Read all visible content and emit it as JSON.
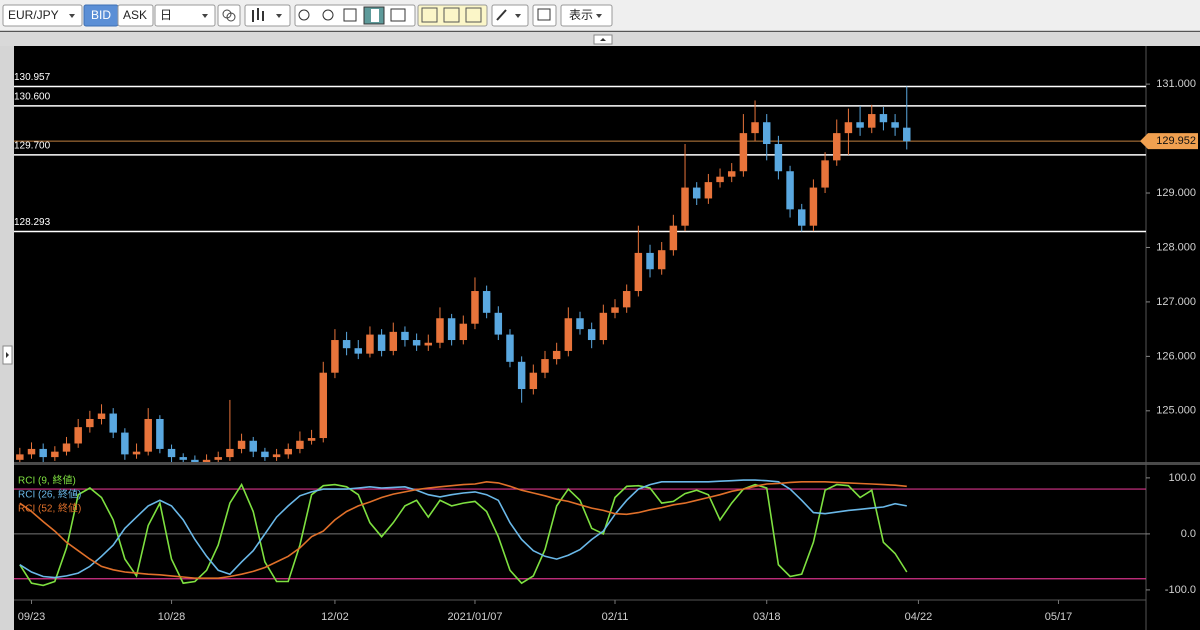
{
  "toolbar": {
    "symbol": "EUR/JPY",
    "bid": "BID",
    "ask": "ASK",
    "period": "日",
    "display": "表示"
  },
  "chart_data": [
    {
      "type": "candlestick",
      "up_color": "#e8743b",
      "down_color": "#5aa8e0",
      "open": [
        124.1,
        124.2,
        124.3,
        124.15,
        124.25,
        124.4,
        124.7,
        124.85,
        124.95,
        124.6,
        124.2,
        124.25,
        124.85,
        124.3,
        124.15,
        124.1,
        124.05,
        124.1,
        124.15,
        124.3,
        124.45,
        124.25,
        124.15,
        124.2,
        124.3,
        124.45,
        124.5,
        125.7,
        126.3,
        126.15,
        126.05,
        126.4,
        126.1,
        126.45,
        126.3,
        126.2,
        126.25,
        126.7,
        126.3,
        126.6,
        127.2,
        126.8,
        126.4,
        125.9,
        125.4,
        125.7,
        125.95,
        126.1,
        126.7,
        126.5,
        126.3,
        126.8,
        126.9,
        127.2,
        127.9,
        127.6,
        127.95,
        128.4,
        129.1,
        128.9,
        129.2,
        129.3,
        129.4,
        130.1,
        130.3,
        129.9,
        129.4,
        128.7,
        128.4,
        129.1,
        129.6,
        130.1,
        130.3,
        130.2,
        130.45,
        130.3,
        130.2,
        null,
        null,
        null,
        null,
        null,
        null,
        null,
        null,
        null,
        null,
        null,
        null,
        null,
        null,
        null,
        null,
        null,
        null,
        null,
        null
      ],
      "high": [
        124.32,
        124.42,
        124.4,
        124.35,
        124.52,
        124.85,
        125.0,
        125.12,
        125.05,
        124.68,
        124.4,
        125.05,
        124.92,
        124.38,
        124.22,
        124.18,
        124.2,
        124.25,
        125.2,
        124.58,
        124.52,
        124.32,
        124.3,
        124.4,
        124.62,
        124.65,
        125.9,
        126.5,
        126.45,
        126.3,
        126.55,
        126.5,
        126.62,
        126.55,
        126.42,
        126.4,
        126.9,
        126.78,
        126.75,
        127.45,
        127.3,
        126.92,
        126.5,
        126.0,
        125.85,
        126.1,
        126.25,
        126.9,
        126.82,
        126.62,
        126.95,
        127.05,
        127.32,
        128.4,
        128.05,
        128.1,
        128.6,
        129.9,
        129.2,
        129.35,
        129.45,
        129.55,
        130.45,
        130.7,
        130.45,
        130.05,
        129.5,
        128.8,
        129.25,
        129.75,
        130.35,
        130.55,
        130.6,
        130.62,
        130.58,
        130.45,
        130.957,
        null,
        null,
        null,
        null,
        null,
        null,
        null,
        null,
        null,
        null,
        null,
        null,
        null,
        null,
        null,
        null,
        null,
        null,
        null,
        null
      ],
      "low": [
        124.0,
        124.12,
        124.05,
        124.08,
        124.18,
        124.32,
        124.6,
        124.75,
        124.5,
        124.1,
        124.12,
        124.18,
        124.22,
        124.06,
        124.02,
        123.97,
        123.98,
        124.02,
        124.08,
        124.22,
        124.15,
        124.08,
        124.08,
        124.12,
        124.22,
        124.38,
        124.42,
        125.6,
        126.02,
        125.95,
        125.98,
        126.0,
        126.02,
        126.18,
        126.1,
        126.1,
        126.15,
        126.2,
        126.22,
        126.5,
        126.7,
        126.3,
        125.8,
        125.15,
        125.3,
        125.6,
        125.85,
        126.0,
        126.4,
        126.15,
        126.22,
        126.7,
        126.8,
        127.1,
        127.45,
        127.5,
        127.85,
        128.3,
        128.78,
        128.8,
        129.1,
        129.2,
        129.3,
        129.95,
        129.6,
        129.25,
        128.55,
        128.293,
        128.3,
        129.0,
        129.5,
        129.7,
        130.05,
        130.1,
        130.15,
        130.05,
        129.8,
        null,
        null,
        null,
        null,
        null,
        null,
        null,
        null,
        null,
        null,
        null,
        null,
        null,
        null,
        null,
        null,
        null,
        null,
        null,
        null
      ],
      "close": [
        124.2,
        124.3,
        124.15,
        124.25,
        124.4,
        124.7,
        124.85,
        124.95,
        124.6,
        124.2,
        124.25,
        124.85,
        124.3,
        124.15,
        124.1,
        124.05,
        124.1,
        124.15,
        124.3,
        124.45,
        124.25,
        124.15,
        124.2,
        124.3,
        124.45,
        124.5,
        125.7,
        126.3,
        126.15,
        126.05,
        126.4,
        126.1,
        126.45,
        126.3,
        126.2,
        126.25,
        126.7,
        126.3,
        126.6,
        127.2,
        126.8,
        126.4,
        125.9,
        125.4,
        125.7,
        125.95,
        126.1,
        126.7,
        126.5,
        126.3,
        126.8,
        126.9,
        127.2,
        127.9,
        127.6,
        127.95,
        128.4,
        129.1,
        128.9,
        129.2,
        129.3,
        129.4,
        130.1,
        130.3,
        129.9,
        129.4,
        128.7,
        128.4,
        129.1,
        129.6,
        130.1,
        130.3,
        130.2,
        130.45,
        130.3,
        130.2,
        129.95,
        null,
        null,
        null,
        null,
        null,
        null,
        null,
        null,
        null,
        null,
        null,
        null,
        null,
        null,
        null,
        null,
        null,
        null,
        null,
        null
      ],
      "ylim": [
        124.06,
        131.7
      ],
      "yticks": [
        {
          "value": 125,
          "label": "125.000"
        },
        {
          "value": 126,
          "label": "126.000"
        },
        {
          "value": 127,
          "label": "127.000"
        },
        {
          "value": 128,
          "label": "128.000"
        },
        {
          "value": 129,
          "label": "129.000"
        },
        {
          "value": 130,
          "label": "130.000"
        },
        {
          "value": 131,
          "label": "131.000"
        }
      ],
      "levels": [
        130.957,
        {
          "value": 130.6,
          "label": "130.600"
        },
        {
          "value": 129.7,
          "label": "129.700"
        },
        128.293
      ],
      "level_color": "#ffffff",
      "last": 129.952,
      "last_color": "#f0a050"
    },
    {
      "type": "line",
      "categories": [
        null,
        "09/23",
        null,
        null,
        null,
        null,
        null,
        null,
        null,
        null,
        null,
        null,
        null,
        "10/28",
        null,
        null,
        null,
        null,
        null,
        null,
        null,
        null,
        null,
        null,
        null,
        null,
        null,
        "12/02",
        null,
        null,
        null,
        null,
        null,
        null,
        null,
        null,
        null,
        null,
        null,
        "2021/01/07",
        null,
        null,
        null,
        null,
        null,
        null,
        null,
        null,
        null,
        null,
        null,
        "02/11",
        null,
        null,
        null,
        null,
        null,
        null,
        null,
        null,
        null,
        null,
        null,
        null,
        "03/18",
        null,
        null,
        null,
        null,
        null,
        null,
        null,
        null,
        null,
        null,
        null,
        null,
        "04/22",
        null,
        null,
        null,
        null,
        null,
        null,
        null,
        null,
        null,
        null,
        null,
        "05/17",
        null,
        null,
        null,
        null,
        null,
        null,
        null
      ],
      "series": [
        {
          "name": "RCI (9, 終値)",
          "color": "#7ee040",
          "values": [
            -55,
            -88,
            -92,
            -85,
            -25,
            70,
            82,
            65,
            25,
            -45,
            -75,
            15,
            55,
            -45,
            -88,
            -85,
            -65,
            -20,
            55,
            88,
            40,
            -50,
            -85,
            -85,
            -20,
            70,
            86,
            88,
            84,
            70,
            20,
            -5,
            20,
            50,
            60,
            30,
            60,
            50,
            55,
            58,
            40,
            -5,
            -65,
            -88,
            -75,
            -28,
            50,
            80,
            60,
            10,
            0,
            65,
            85,
            86,
            82,
            55,
            58,
            72,
            78,
            70,
            25,
            55,
            80,
            88,
            82,
            -55,
            -76,
            -72,
            -15,
            78,
            88,
            86,
            65,
            78,
            -15,
            -35,
            -68,
            null,
            null,
            null,
            null,
            null,
            null,
            null,
            null,
            null,
            null,
            null,
            null,
            null,
            null,
            null,
            null,
            null,
            null,
            null,
            null
          ]
        },
        {
          "name": "RCI (26, 終値)",
          "color": "#6ab8e8",
          "values": [
            -55,
            -68,
            -76,
            -78,
            -75,
            -70,
            -58,
            -40,
            -20,
            10,
            30,
            50,
            60,
            50,
            25,
            -10,
            -40,
            -65,
            -72,
            -50,
            -30,
            0,
            30,
            50,
            68,
            75,
            80,
            80,
            80,
            82,
            84,
            82,
            83,
            84,
            78,
            70,
            66,
            70,
            73,
            75,
            70,
            60,
            20,
            -10,
            -30,
            -40,
            -45,
            -38,
            -28,
            -10,
            5,
            35,
            60,
            80,
            88,
            93,
            93,
            93,
            93,
            93,
            94,
            95,
            96,
            96,
            95,
            93,
            80,
            60,
            38,
            36,
            39,
            42,
            44,
            46,
            48,
            54,
            50,
            null,
            null,
            null,
            null,
            null,
            null,
            null,
            null,
            null,
            null,
            null,
            null,
            null,
            null,
            null,
            null,
            null,
            null,
            null,
            null
          ]
        },
        {
          "name": "RCI (52, 終値)",
          "color": "#e0702a",
          "values": [
            55,
            40,
            22,
            5,
            -15,
            -30,
            -45,
            -58,
            -64,
            -68,
            -70,
            -72,
            -73,
            -75,
            -77,
            -79,
            -79,
            -79,
            -76,
            -72,
            -67,
            -60,
            -50,
            -40,
            -25,
            -5,
            5,
            25,
            40,
            50,
            57,
            65,
            71,
            75,
            79,
            82,
            84,
            86,
            88,
            89,
            93,
            91,
            85,
            78,
            73,
            68,
            62,
            58,
            52,
            46,
            42,
            36,
            35,
            38,
            43,
            47,
            52,
            55,
            60,
            65,
            70,
            76,
            80,
            85,
            89,
            90,
            92,
            93,
            93,
            93,
            92,
            91,
            90,
            89,
            88,
            87,
            85,
            null,
            null,
            null,
            null,
            null,
            null,
            null,
            null,
            null,
            null,
            null,
            null,
            null,
            null,
            null,
            null,
            null,
            null,
            null,
            null
          ]
        }
      ],
      "ylim": [
        -118,
        123
      ],
      "yticks": [
        {
          "value": 100,
          "label": "100.0"
        },
        {
          "value": 0,
          "label": "0.0"
        },
        {
          "value": -100,
          "label": "-100.0"
        }
      ],
      "levels": [
        80,
        -80
      ],
      "level_color": "#d6338a",
      "zero_line": true
    }
  ]
}
